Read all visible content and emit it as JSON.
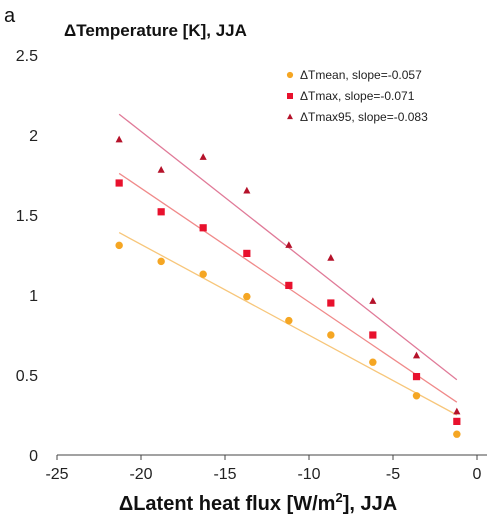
{
  "chart_data": {
    "type": "scatter",
    "panel_label": "a",
    "title": "ΔTemperature [K], JJA",
    "xlabel_main": "ΔLatent heat flux [W/m",
    "xlabel_sup": "2",
    "xlabel_tail": "], JJA",
    "xlim": [
      -25,
      0
    ],
    "ylim": [
      0,
      2.5
    ],
    "xticks": [
      -25,
      -20,
      -15,
      -10,
      -5,
      0
    ],
    "xtick_labels": [
      "-25",
      "-20",
      "-15",
      "-10",
      "-5",
      "0"
    ],
    "yticks": [
      0,
      0.5,
      1,
      1.5,
      2,
      2.5
    ],
    "ytick_labels": [
      "0",
      "0.5",
      "1",
      "1.5",
      "2",
      "2.5"
    ],
    "x": [
      -21.3,
      -18.8,
      -16.3,
      -13.7,
      -11.2,
      -8.7,
      -6.2,
      -3.6,
      -1.2
    ],
    "series": [
      {
        "name": "ΔTmean, slope=-0.057",
        "marker": "circle",
        "color": "#f5a623",
        "line_color": "#f7c67a",
        "values": [
          1.31,
          1.21,
          1.13,
          0.99,
          0.84,
          0.75,
          0.58,
          0.37,
          0.13
        ],
        "fit_start": [
          -21.3,
          1.39
        ],
        "fit_end": [
          -1.2,
          0.25
        ]
      },
      {
        "name": "ΔTmax, slope=-0.071",
        "marker": "square",
        "color": "#e8112d",
        "line_color": "#f08a8a",
        "values": [
          1.7,
          1.52,
          1.42,
          1.26,
          1.06,
          0.95,
          0.75,
          0.49,
          0.21
        ],
        "fit_start": [
          -21.3,
          1.76
        ],
        "fit_end": [
          -1.2,
          0.33
        ]
      },
      {
        "name": "ΔTmax95, slope=-0.083",
        "marker": "triangle",
        "color": "#b5122a",
        "line_color": "#e07a98",
        "values": [
          1.97,
          1.78,
          1.86,
          1.65,
          1.31,
          1.23,
          0.96,
          0.62,
          0.27
        ],
        "fit_start": [
          -21.3,
          2.13
        ],
        "fit_end": [
          -1.2,
          0.47
        ]
      }
    ],
    "legend_position": "top-right",
    "grid": false
  }
}
